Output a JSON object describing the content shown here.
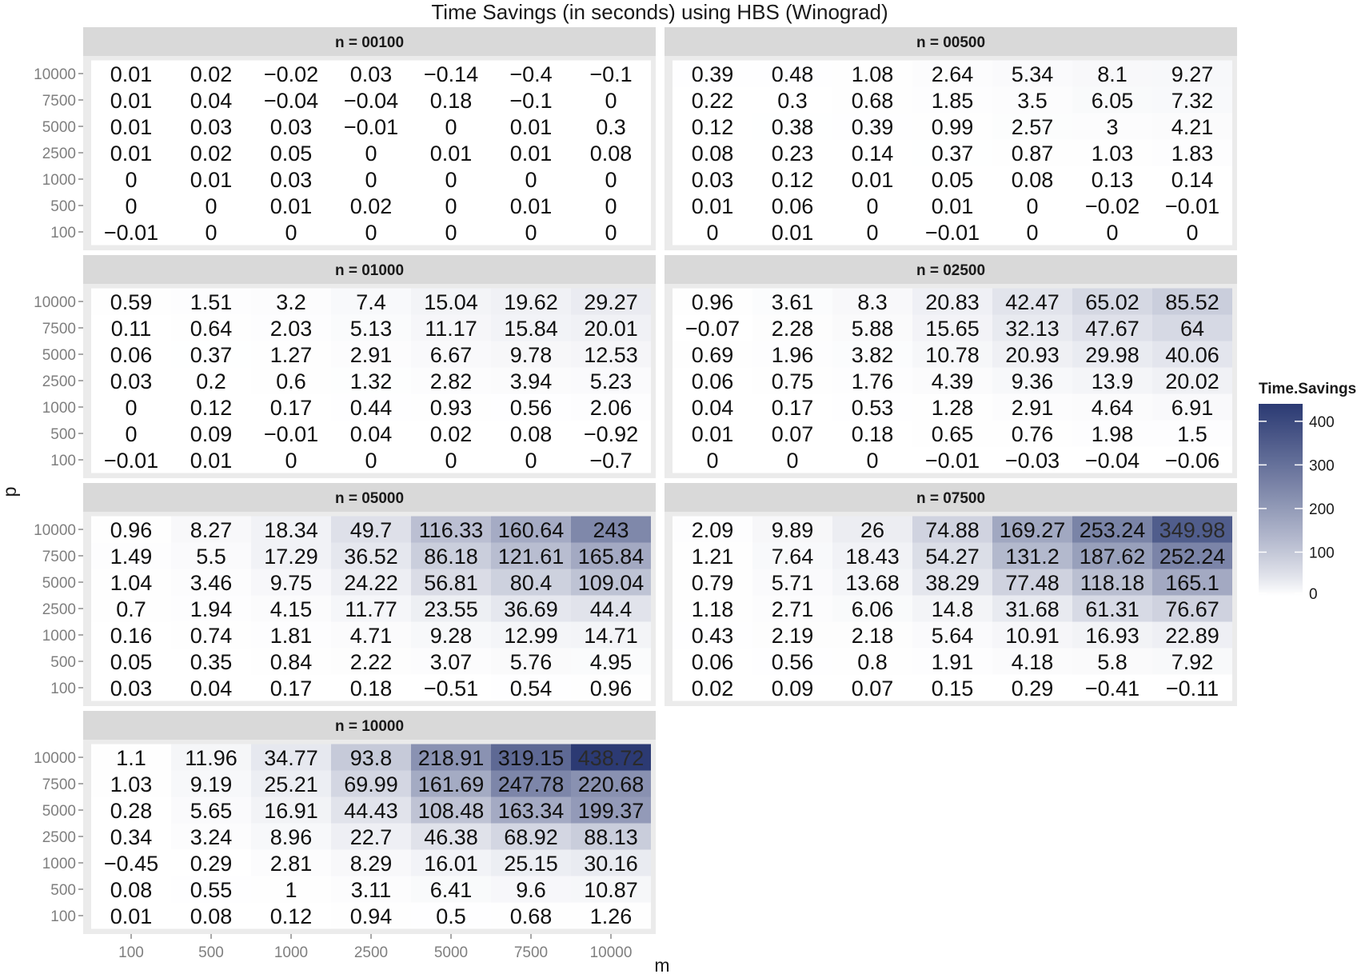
{
  "chart_data": {
    "type": "heatmap",
    "title": "Time Savings (in seconds) using HBS (Winograd)",
    "xlabel": "m",
    "ylabel": "p",
    "x_categories": [
      "100",
      "500",
      "1000",
      "2500",
      "5000",
      "7500",
      "10000"
    ],
    "y_categories": [
      "10000",
      "7500",
      "5000",
      "2500",
      "1000",
      "500",
      "100"
    ],
    "legend": {
      "title": "Time.Savings",
      "ticks": [
        "400",
        "300",
        "200",
        "100",
        "0"
      ],
      "range": [
        0,
        440
      ],
      "placement": "right",
      "colors": {
        "low": "#ffffff",
        "high": "#2b3a73"
      }
    },
    "panels": [
      {
        "label": "n = 00100",
        "labels": [
          [
            "0.01",
            "0.02",
            "−0.02",
            "0.03",
            "−0.14",
            "−0.4",
            "−0.1"
          ],
          [
            "0.01",
            "0.04",
            "−0.04",
            "−0.04",
            "0.18",
            "−0.1",
            "0"
          ],
          [
            "0.01",
            "0.03",
            "0.03",
            "−0.01",
            "0",
            "0.01",
            "0.3"
          ],
          [
            "0.01",
            "0.02",
            "0.05",
            "0",
            "0.01",
            "0.01",
            "0.08"
          ],
          [
            "0",
            "0.01",
            "0.03",
            "0",
            "0",
            "0",
            "0"
          ],
          [
            "0",
            "0",
            "0.01",
            "0.02",
            "0",
            "0.01",
            "0"
          ],
          [
            "−0.01",
            "0",
            "0",
            "0",
            "0",
            "0",
            "0"
          ]
        ]
      },
      {
        "label": "n = 00500",
        "labels": [
          [
            "0.39",
            "0.48",
            "1.08",
            "2.64",
            "5.34",
            "8.1",
            "9.27"
          ],
          [
            "0.22",
            "0.3",
            "0.68",
            "1.85",
            "3.5",
            "6.05",
            "7.32"
          ],
          [
            "0.12",
            "0.38",
            "0.39",
            "0.99",
            "2.57",
            "3",
            "4.21"
          ],
          [
            "0.08",
            "0.23",
            "0.14",
            "0.37",
            "0.87",
            "1.03",
            "1.83"
          ],
          [
            "0.03",
            "0.12",
            "0.01",
            "0.05",
            "0.08",
            "0.13",
            "0.14"
          ],
          [
            "0.01",
            "0.06",
            "0",
            "0.01",
            "0",
            "−0.02",
            "−0.01"
          ],
          [
            "0",
            "0.01",
            "0",
            "−0.01",
            "0",
            "0",
            "0"
          ]
        ]
      },
      {
        "label": "n = 01000",
        "labels": [
          [
            "0.59",
            "1.51",
            "3.2",
            "7.4",
            "15.04",
            "19.62",
            "29.27"
          ],
          [
            "0.11",
            "0.64",
            "2.03",
            "5.13",
            "11.17",
            "15.84",
            "20.01"
          ],
          [
            "0.06",
            "0.37",
            "1.27",
            "2.91",
            "6.67",
            "9.78",
            "12.53"
          ],
          [
            "0.03",
            "0.2",
            "0.6",
            "1.32",
            "2.82",
            "3.94",
            "5.23"
          ],
          [
            "0",
            "0.12",
            "0.17",
            "0.44",
            "0.93",
            "0.56",
            "2.06"
          ],
          [
            "0",
            "0.09",
            "−0.01",
            "0.04",
            "0.02",
            "0.08",
            "−0.92"
          ],
          [
            "−0.01",
            "0.01",
            "0",
            "0",
            "0",
            "0",
            "−0.7"
          ]
        ]
      },
      {
        "label": "n = 02500",
        "labels": [
          [
            "0.96",
            "3.61",
            "8.3",
            "20.83",
            "42.47",
            "65.02",
            "85.52"
          ],
          [
            "−0.07",
            "2.28",
            "5.88",
            "15.65",
            "32.13",
            "47.67",
            "64"
          ],
          [
            "0.69",
            "1.96",
            "3.82",
            "10.78",
            "20.93",
            "29.98",
            "40.06"
          ],
          [
            "0.06",
            "0.75",
            "1.76",
            "4.39",
            "9.36",
            "13.9",
            "20.02"
          ],
          [
            "0.04",
            "0.17",
            "0.53",
            "1.28",
            "2.91",
            "4.64",
            "6.91"
          ],
          [
            "0.01",
            "0.07",
            "0.18",
            "0.65",
            "0.76",
            "1.98",
            "1.5"
          ],
          [
            "0",
            "0",
            "0",
            "−0.01",
            "−0.03",
            "−0.04",
            "−0.06"
          ]
        ]
      },
      {
        "label": "n = 05000",
        "labels": [
          [
            "0.96",
            "8.27",
            "18.34",
            "49.7",
            "116.33",
            "160.64",
            "243"
          ],
          [
            "1.49",
            "5.5",
            "17.29",
            "36.52",
            "86.18",
            "121.61",
            "165.84"
          ],
          [
            "1.04",
            "3.46",
            "9.75",
            "24.22",
            "56.81",
            "80.4",
            "109.04"
          ],
          [
            "0.7",
            "1.94",
            "4.15",
            "11.77",
            "23.55",
            "36.69",
            "44.4"
          ],
          [
            "0.16",
            "0.74",
            "1.81",
            "4.71",
            "9.28",
            "12.99",
            "14.71"
          ],
          [
            "0.05",
            "0.35",
            "0.84",
            "2.22",
            "3.07",
            "5.76",
            "4.95"
          ],
          [
            "0.03",
            "0.04",
            "0.17",
            "0.18",
            "−0.51",
            "0.54",
            "0.96"
          ]
        ]
      },
      {
        "label": "n = 07500",
        "labels": [
          [
            "2.09",
            "9.89",
            "26",
            "74.88",
            "169.27",
            "253.24",
            "349.98"
          ],
          [
            "1.21",
            "7.64",
            "18.43",
            "54.27",
            "131.2",
            "187.62",
            "252.24"
          ],
          [
            "0.79",
            "5.71",
            "13.68",
            "38.29",
            "77.48",
            "118.18",
            "165.1"
          ],
          [
            "1.18",
            "2.71",
            "6.06",
            "14.8",
            "31.68",
            "61.31",
            "76.67"
          ],
          [
            "0.43",
            "2.19",
            "2.18",
            "5.64",
            "10.91",
            "16.93",
            "22.89"
          ],
          [
            "0.06",
            "0.56",
            "0.8",
            "1.91",
            "4.18",
            "5.8",
            "7.92"
          ],
          [
            "0.02",
            "0.09",
            "0.07",
            "0.15",
            "0.29",
            "−0.41",
            "−0.11"
          ]
        ]
      },
      {
        "label": "n = 10000",
        "labels": [
          [
            "1.1",
            "11.96",
            "34.77",
            "93.8",
            "218.91",
            "319.15",
            "438.72"
          ],
          [
            "1.03",
            "9.19",
            "25.21",
            "69.99",
            "161.69",
            "247.78",
            "220.68"
          ],
          [
            "0.28",
            "5.65",
            "16.91",
            "44.43",
            "108.48",
            "163.34",
            "199.37"
          ],
          [
            "0.34",
            "3.24",
            "8.96",
            "22.7",
            "46.38",
            "68.92",
            "88.13"
          ],
          [
            "−0.45",
            "0.29",
            "2.81",
            "8.29",
            "16.01",
            "25.15",
            "30.16"
          ],
          [
            "0.08",
            "0.55",
            "1",
            "3.11",
            "6.41",
            "9.6",
            "10.87"
          ],
          [
            "0.01",
            "0.08",
            "0.12",
            "0.94",
            "0.5",
            "0.68",
            "1.26"
          ]
        ]
      }
    ]
  }
}
